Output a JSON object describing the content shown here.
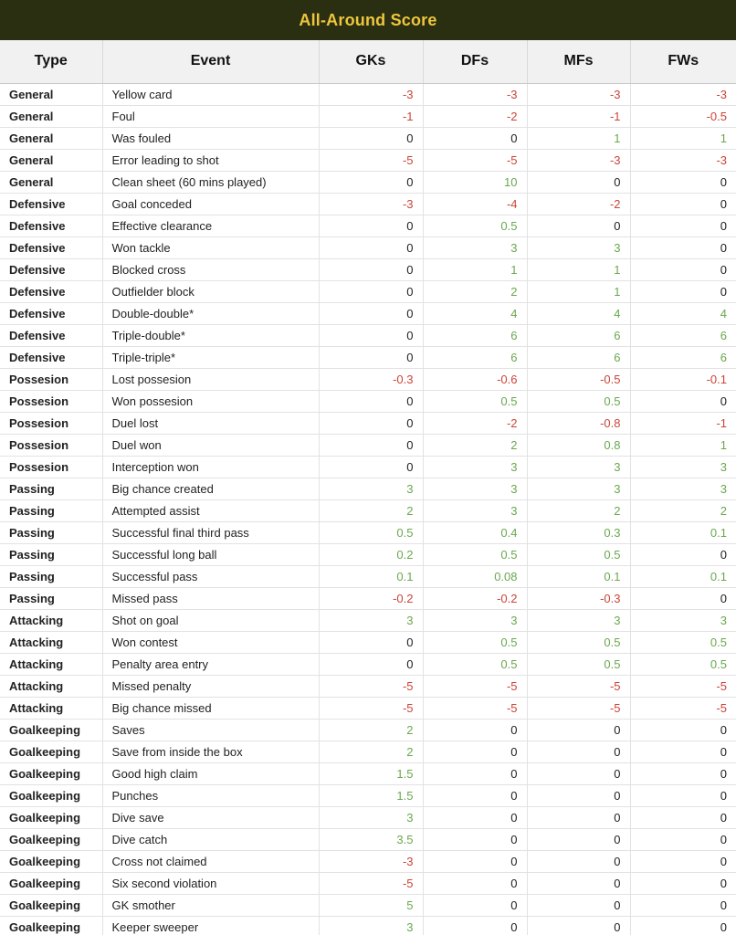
{
  "title": "All-Around Score",
  "colors": {
    "title_bar_bg": "#2a2f12",
    "title_text": "#eec63d",
    "header_bg": "#f1f1f1",
    "negative_value": "#cc4437",
    "positive_value": "#6aa84f",
    "zero_value": "#222222"
  },
  "chart_data": {
    "type": "table",
    "title": "All-Around Score",
    "columns": [
      "Type",
      "Event",
      "GKs",
      "DFs",
      "MFs",
      "FWs"
    ],
    "rows": [
      [
        "General",
        "Yellow card",
        "-3",
        "-3",
        "-3",
        "-3"
      ],
      [
        "General",
        "Foul",
        "-1",
        "-2",
        "-1",
        "-0.5"
      ],
      [
        "General",
        "Was fouled",
        "0",
        "0",
        "1",
        "1"
      ],
      [
        "General",
        "Error leading to shot",
        "-5",
        "-5",
        "-3",
        "-3"
      ],
      [
        "General",
        "Clean sheet (60 mins played)",
        "0",
        "10",
        "0",
        "0"
      ],
      [
        "Defensive",
        "Goal conceded",
        "-3",
        "-4",
        "-2",
        "0"
      ],
      [
        "Defensive",
        "Effective clearance",
        "0",
        "0.5",
        "0",
        "0"
      ],
      [
        "Defensive",
        "Won tackle",
        "0",
        "3",
        "3",
        "0"
      ],
      [
        "Defensive",
        "Blocked cross",
        "0",
        "1",
        "1",
        "0"
      ],
      [
        "Defensive",
        "Outfielder block",
        "0",
        "2",
        "1",
        "0"
      ],
      [
        "Defensive",
        "Double-double*",
        "0",
        "4",
        "4",
        "4"
      ],
      [
        "Defensive",
        "Triple-double*",
        "0",
        "6",
        "6",
        "6"
      ],
      [
        "Defensive",
        "Triple-triple*",
        "0",
        "6",
        "6",
        "6"
      ],
      [
        "Possesion",
        "Lost possesion",
        "-0.3",
        "-0.6",
        "-0.5",
        "-0.1"
      ],
      [
        "Possesion",
        "Won possesion",
        "0",
        "0.5",
        "0.5",
        "0"
      ],
      [
        "Possesion",
        "Duel lost",
        "0",
        "-2",
        "-0.8",
        "-1"
      ],
      [
        "Possesion",
        "Duel won",
        "0",
        "2",
        "0.8",
        "1"
      ],
      [
        "Possesion",
        "Interception won",
        "0",
        "3",
        "3",
        "3"
      ],
      [
        "Passing",
        "Big chance created",
        "3",
        "3",
        "3",
        "3"
      ],
      [
        "Passing",
        "Attempted assist",
        "2",
        "3",
        "2",
        "2"
      ],
      [
        "Passing",
        "Successful final third pass",
        "0.5",
        "0.4",
        "0.3",
        "0.1"
      ],
      [
        "Passing",
        "Successful long ball",
        "0.2",
        "0.5",
        "0.5",
        "0"
      ],
      [
        "Passing",
        "Successful pass",
        "0.1",
        "0.08",
        "0.1",
        "0.1"
      ],
      [
        "Passing",
        "Missed pass",
        "-0.2",
        "-0.2",
        "-0.3",
        "0"
      ],
      [
        "Attacking",
        "Shot on goal",
        "3",
        "3",
        "3",
        "3"
      ],
      [
        "Attacking",
        "Won contest",
        "0",
        "0.5",
        "0.5",
        "0.5"
      ],
      [
        "Attacking",
        "Penalty area entry",
        "0",
        "0.5",
        "0.5",
        "0.5"
      ],
      [
        "Attacking",
        "Missed penalty",
        "-5",
        "-5",
        "-5",
        "-5"
      ],
      [
        "Attacking",
        "Big chance missed",
        "-5",
        "-5",
        "-5",
        "-5"
      ],
      [
        "Goalkeeping",
        "Saves",
        "2",
        "0",
        "0",
        "0"
      ],
      [
        "Goalkeeping",
        "Save from inside the box",
        "2",
        "0",
        "0",
        "0"
      ],
      [
        "Goalkeeping",
        "Good high claim",
        "1.5",
        "0",
        "0",
        "0"
      ],
      [
        "Goalkeeping",
        "Punches",
        "1.5",
        "0",
        "0",
        "0"
      ],
      [
        "Goalkeeping",
        "Dive save",
        "3",
        "0",
        "0",
        "0"
      ],
      [
        "Goalkeeping",
        "Dive catch",
        "3.5",
        "0",
        "0",
        "0"
      ],
      [
        "Goalkeeping",
        "Cross not claimed",
        "-3",
        "0",
        "0",
        "0"
      ],
      [
        "Goalkeeping",
        "Six second violation",
        "-5",
        "0",
        "0",
        "0"
      ],
      [
        "Goalkeeping",
        "GK smother",
        "5",
        "0",
        "0",
        "0"
      ],
      [
        "Goalkeeping",
        "Keeper sweeper",
        "3",
        "0",
        "0",
        "0"
      ]
    ]
  }
}
